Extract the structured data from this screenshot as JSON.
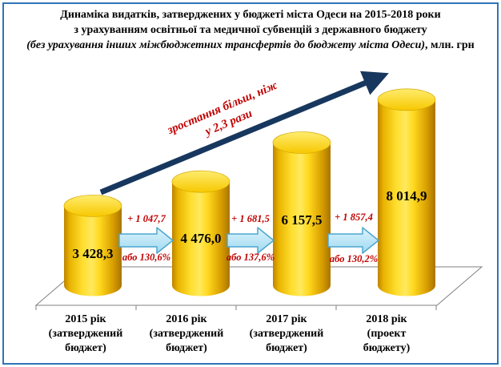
{
  "title": {
    "line1": "Динаміка видатків, затверджених у бюджеті міста Одеси на 2015-2018 роки",
    "line2": "з урахуванням освітньої та медичної субвенцій з державного бюджету",
    "line3_italic": "(без урахування інших міжбюджетних трансфертів до бюджету міста Одеси)",
    "line3_suffix": ", млн. грн"
  },
  "chart_data": {
    "type": "bar",
    "subtype": "3d-cylinder",
    "title": "Динаміка видатків, затверджених у бюджеті міста Одеси на 2015-2018 роки з урахуванням освітньої та медичної субвенцій з державного бюджету (без урахування інших міжбюджетних трансфертів до бюджету міста Одеси)",
    "unit": "млн. грн",
    "categories": [
      "2015 рік\n(затверджений\nбюджет)",
      "2016 рік\n(затверджений\nбюджет)",
      "2017 рік\n(затверджений\nбюджет)",
      "2018 рік\n(проект\nбюджету)"
    ],
    "values": [
      3428.3,
      4476.0,
      6157.5,
      8014.9
    ],
    "value_labels": [
      "3 428,3",
      "4 476,0",
      "6 157,5",
      "8 014,9"
    ],
    "deltas": [
      {
        "amount": "+ 1 047,7",
        "percent": "або 130,6%"
      },
      {
        "amount": "+ 1 681,5",
        "percent": "або 137,6%"
      },
      {
        "amount": "+ 1 857,4",
        "percent": "або 130,2%"
      }
    ],
    "annotation": "зростання більш, ніж\nу 2,3 рази",
    "ylim": [
      0,
      8300
    ],
    "grid": false,
    "legend": false,
    "colors": {
      "cylinder": "#FFD91E",
      "cylinder_edge": "#BE8400",
      "trend_arrow": "#17375E",
      "increase_arrow_fill": "#BCE7F7",
      "increase_arrow_stroke": "#4DA6CE",
      "delta_text": "#C00000",
      "annotation_text": "#C00000",
      "floor_stroke": "#808080",
      "frame_border": "#2E74B5"
    }
  }
}
